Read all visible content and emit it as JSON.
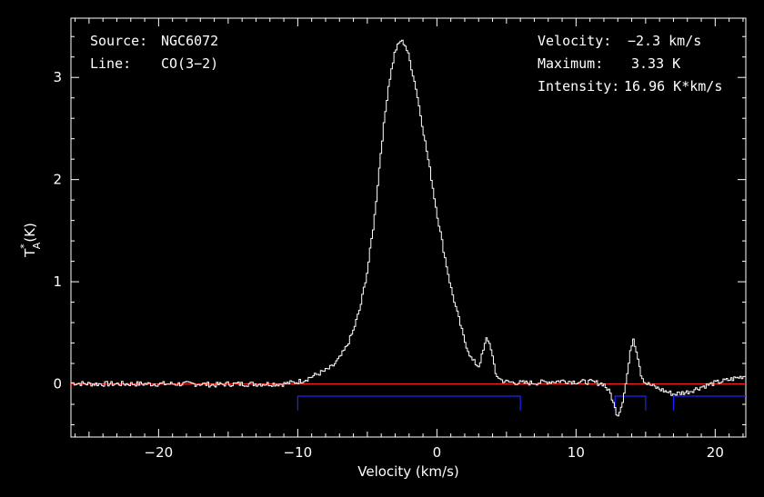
{
  "chart_data": {
    "type": "line",
    "xlabel": "Velocity (km/s)",
    "ylabel": "T*A (K)",
    "ylabel_main": "T",
    "ylabel_sup": "*",
    "ylabel_sub": "A",
    "ylabel_unit": "(K)",
    "xlim": [
      -26.3,
      22.2
    ],
    "ylim": [
      -0.52,
      3.58
    ],
    "xticks": [
      -20,
      -10,
      0,
      10,
      20
    ],
    "xtick_labels": [
      "−20",
      "−10",
      "0",
      "10",
      "20"
    ],
    "yticks": [
      0,
      1,
      2,
      3
    ],
    "ytick_labels": [
      "0",
      "1",
      "2",
      "3"
    ],
    "grid": false,
    "colors": {
      "spectrum": "#ffffff",
      "baseline": "#ff2020",
      "windows": "#2020ff",
      "axes": "#ffffff",
      "background": "#000000"
    },
    "info": {
      "source_label": "Source:",
      "source_value": "NGC6072",
      "line_label": "Line:",
      "line_value": "CO(3−2)",
      "velocity_label": "Velocity:",
      "velocity_value": "−2.3 km/s",
      "maximum_label": "Maximum:",
      "maximum_value": "3.33 K",
      "intensity_label": "Intensity:",
      "intensity_value": "16.96 K*km/s"
    },
    "baseline": {
      "y": 0.0
    },
    "baseline_windows": {
      "level": -0.12,
      "ranges": [
        [
          -10,
          6
        ],
        [
          12.8,
          15
        ],
        [
          17,
          22.2
        ]
      ]
    },
    "series": [
      {
        "x": [
          -26.3,
          -25,
          -24,
          -23,
          -22,
          -21,
          -20,
          -19,
          -18,
          -17,
          -16,
          -15,
          -14,
          -13,
          -12,
          -11,
          -10.5,
          -10,
          -9.5,
          -9,
          -8.5,
          -8,
          -7.5,
          -7,
          -6.5,
          -6,
          -5.5,
          -5,
          -4.5,
          -4,
          -3.5,
          -3,
          -2.6,
          -2.3,
          -2,
          -1.5,
          -1,
          -0.5,
          0,
          0.5,
          1,
          1.5,
          2,
          2.5,
          3,
          3.3,
          3.6,
          3.9,
          4.2,
          4.6,
          5,
          6,
          7,
          8,
          9,
          10,
          11,
          12,
          12.5,
          12.8,
          13,
          13.3,
          13.6,
          13.9,
          14.1,
          14.4,
          14.7,
          15,
          15.5,
          16,
          17,
          18,
          19,
          20,
          21,
          22.2
        ],
        "y": [
          0.01,
          0,
          0,
          0,
          0,
          0,
          0,
          0,
          0,
          0,
          -0.01,
          0,
          0,
          0,
          0,
          0,
          0.01,
          0.02,
          0.04,
          0.07,
          0.1,
          0.13,
          0.17,
          0.25,
          0.36,
          0.52,
          0.75,
          1.1,
          1.6,
          2.3,
          2.9,
          3.26,
          3.36,
          3.33,
          3.2,
          2.9,
          2.5,
          2.1,
          1.68,
          1.3,
          0.95,
          0.68,
          0.42,
          0.24,
          0.17,
          0.3,
          0.46,
          0.35,
          0.1,
          0.04,
          0.02,
          0.01,
          0.01,
          0.02,
          0.03,
          0.02,
          0.02,
          0,
          -0.1,
          -0.24,
          -0.31,
          -0.2,
          0.02,
          0.3,
          0.46,
          0.3,
          0.08,
          0.01,
          -0.02,
          -0.05,
          -0.1,
          -0.08,
          -0.03,
          0.01,
          0.04,
          0.08
        ]
      }
    ]
  }
}
